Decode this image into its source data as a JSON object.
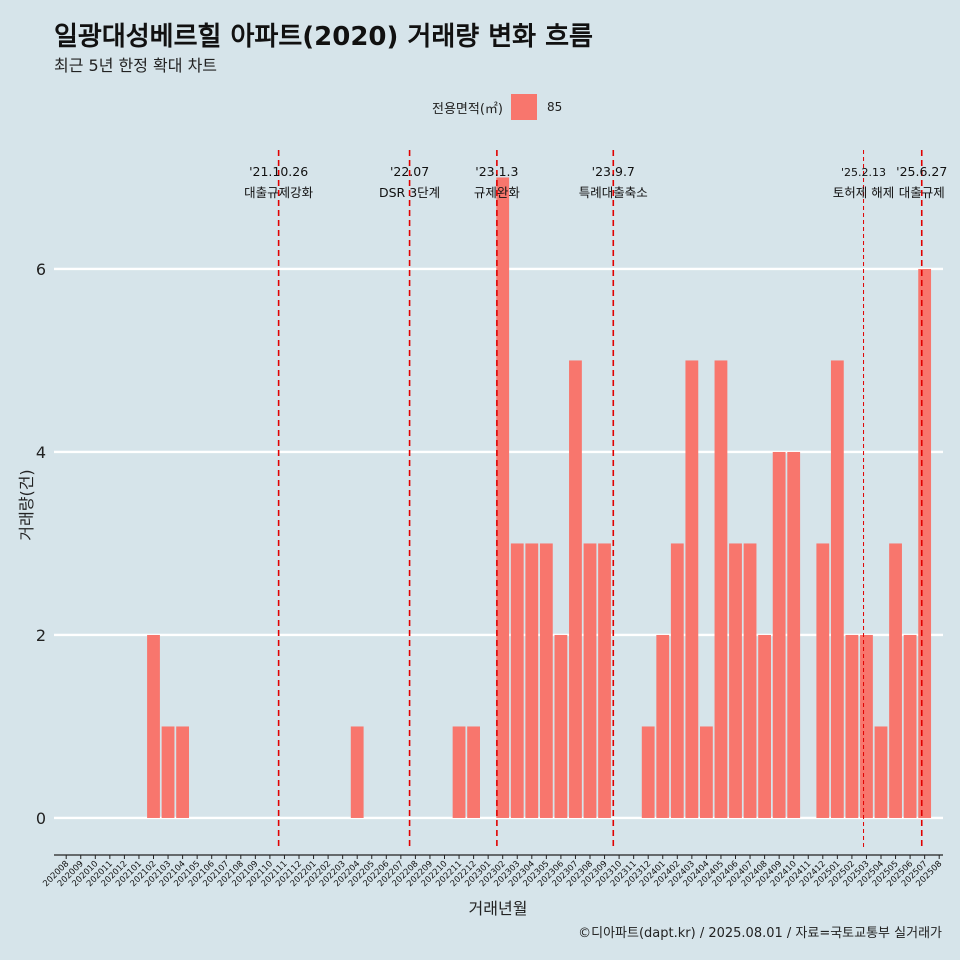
{
  "title": "일광대성베르힐 아파트(2020) 거래량 변화 흐름",
  "subtitle": "최근 5년 한정 확대 차트",
  "caption": "©디아파트(dapt.kr) / 2025.08.01 / 자료=국토교통부 실거래가",
  "colors": {
    "background": "#d6e4ea",
    "bar": "#f8766d",
    "event_line": "#e00000",
    "grid": "#ffffff"
  },
  "chart_data": {
    "type": "bar",
    "xlabel": "거래년월",
    "ylabel": "거래량(건)",
    "ylim": [
      -0.35,
      7.3
    ],
    "yticks": [
      0,
      2,
      4,
      6
    ],
    "grid": "horizontal",
    "legend": {
      "title": "전용면적(㎡)",
      "placement": "top-center",
      "entries": [
        "85"
      ]
    },
    "categories": [
      "202008",
      "202009",
      "202010",
      "202011",
      "202012",
      "202101",
      "202102",
      "202103",
      "202104",
      "202105",
      "202106",
      "202107",
      "202108",
      "202109",
      "202110",
      "202111",
      "202112",
      "202201",
      "202202",
      "202203",
      "202204",
      "202205",
      "202206",
      "202207",
      "202208",
      "202209",
      "202210",
      "202211",
      "202212",
      "202301",
      "202302",
      "202303",
      "202304",
      "202305",
      "202306",
      "202307",
      "202308",
      "202309",
      "202310",
      "202311",
      "202312",
      "202401",
      "202402",
      "202403",
      "202404",
      "202405",
      "202406",
      "202407",
      "202408",
      "202409",
      "202410",
      "202411",
      "202412",
      "202501",
      "202502",
      "202503",
      "202504",
      "202505",
      "202506",
      "202507",
      "202508"
    ],
    "series": [
      {
        "name": "85",
        "values": [
          0,
          0,
          0,
          0,
          0,
          0,
          2,
          1,
          1,
          0,
          0,
          0,
          0,
          0,
          0,
          0,
          0,
          0,
          0,
          0,
          1,
          0,
          0,
          0,
          0,
          0,
          0,
          1,
          1,
          0,
          7,
          3,
          3,
          3,
          2,
          5,
          3,
          3,
          0,
          0,
          1,
          2,
          3,
          5,
          1,
          5,
          3,
          3,
          2,
          4,
          4,
          0,
          3,
          5,
          2,
          2,
          1,
          3,
          2,
          6,
          0
        ]
      }
    ],
    "events": [
      {
        "date": "'21.10.26",
        "label": "대출규제강화",
        "pos": 14.6
      },
      {
        "date": "'22.07",
        "label": "DSR 3단계",
        "pos": 23.6
      },
      {
        "date": "'23.1.3",
        "label": "규제완화",
        "pos": 29.6
      },
      {
        "date": "'23.9.7",
        "label": "특례대출축소",
        "pos": 37.6
      },
      {
        "date": "'25.2.13",
        "label": "토허제 해제",
        "pos": 54.8,
        "thin": true
      },
      {
        "date": "'25.6.27",
        "label": "대출규제",
        "pos": 58.8
      }
    ]
  }
}
